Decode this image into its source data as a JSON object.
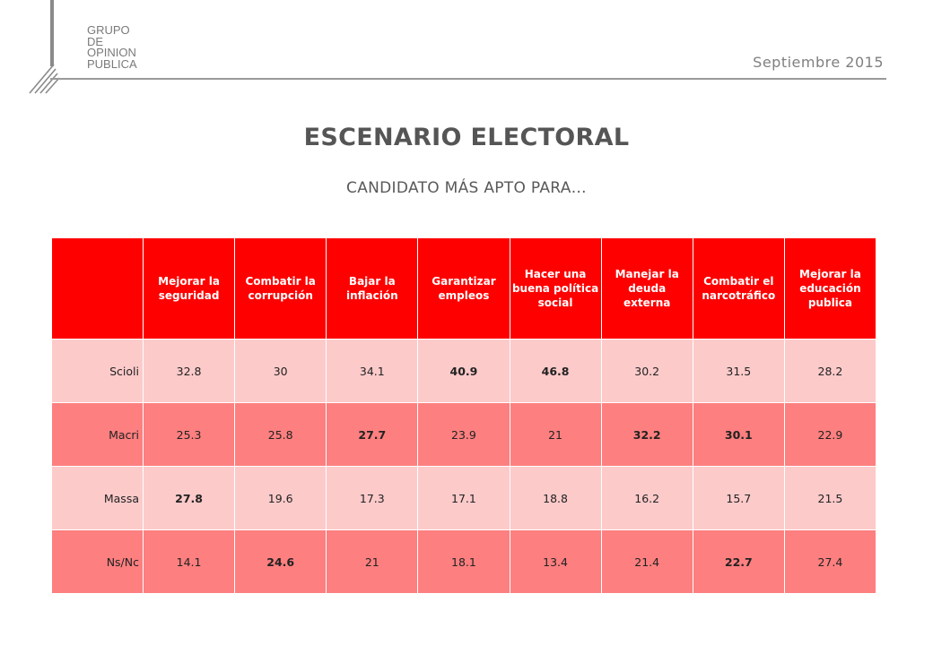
{
  "logo": {
    "lines": [
      "GRUPO",
      "DE",
      "OPINION",
      "PUBLICA"
    ]
  },
  "header": {
    "date": "Septiembre 2015"
  },
  "title": "ESCENARIO ELECTORAL",
  "subtitle": "CANDIDATO MÁS APTO PARA…",
  "colors": {
    "header_red": "#ff0000",
    "row_light": "#fdcaca",
    "row_dark": "#fe7f7f"
  },
  "table": {
    "columns": [
      "Mejorar la seguridad",
      "Combatir la corrupción",
      "Bajar la inflación",
      "Garantizar empleos",
      "Hacer una buena política social",
      "Manejar la deuda externa",
      "Combatir el narcotráfico",
      "Mejorar la educación publica"
    ],
    "rows": [
      {
        "label": "Scioli",
        "values": [
          "32.8",
          "30",
          "34.1",
          "40.9",
          "46.8",
          "30.2",
          "31.5",
          "28.2"
        ],
        "bold": [
          false,
          false,
          false,
          true,
          true,
          false,
          false,
          false
        ]
      },
      {
        "label": "Macri",
        "values": [
          "25.3",
          "25.8",
          "27.7",
          "23.9",
          "21",
          "32.2",
          "30.1",
          "22.9"
        ],
        "bold": [
          false,
          false,
          true,
          false,
          false,
          true,
          true,
          false
        ]
      },
      {
        "label": "Massa",
        "values": [
          "27.8",
          "19.6",
          "17.3",
          "17.1",
          "18.8",
          "16.2",
          "15.7",
          "21.5"
        ],
        "bold": [
          true,
          false,
          false,
          false,
          false,
          false,
          false,
          false
        ]
      },
      {
        "label": "Ns/Nc",
        "values": [
          "14.1",
          "24.6",
          "21",
          "18.1",
          "13.4",
          "21.4",
          "22.7",
          "27.4"
        ],
        "bold": [
          false,
          true,
          false,
          false,
          false,
          false,
          true,
          false
        ]
      }
    ]
  }
}
